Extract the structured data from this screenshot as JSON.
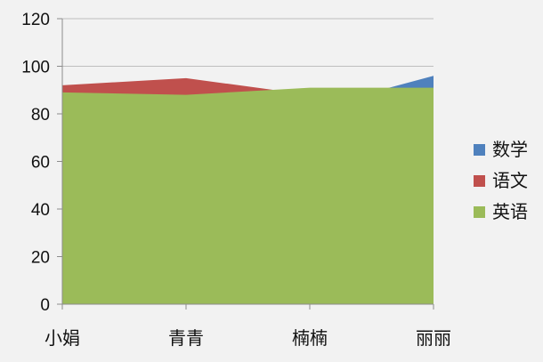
{
  "chart_data": {
    "type": "area",
    "categories": [
      "小娟",
      "青青",
      "楠楠",
      "丽丽"
    ],
    "ylim": [
      0,
      120
    ],
    "yticks": [
      0,
      20,
      40,
      60,
      80,
      100,
      120
    ],
    "grid": true,
    "legend_position": "right",
    "series": [
      {
        "name": "数学",
        "values": [
          85,
          78,
          82,
          96
        ],
        "color": "#4f81bd"
      },
      {
        "name": "语文",
        "values": [
          92,
          95,
          88,
          90
        ],
        "color": "#c0504d"
      },
      {
        "name": "英语",
        "values": [
          89,
          88,
          91,
          91
        ],
        "color": "#9bbb59"
      }
    ]
  }
}
